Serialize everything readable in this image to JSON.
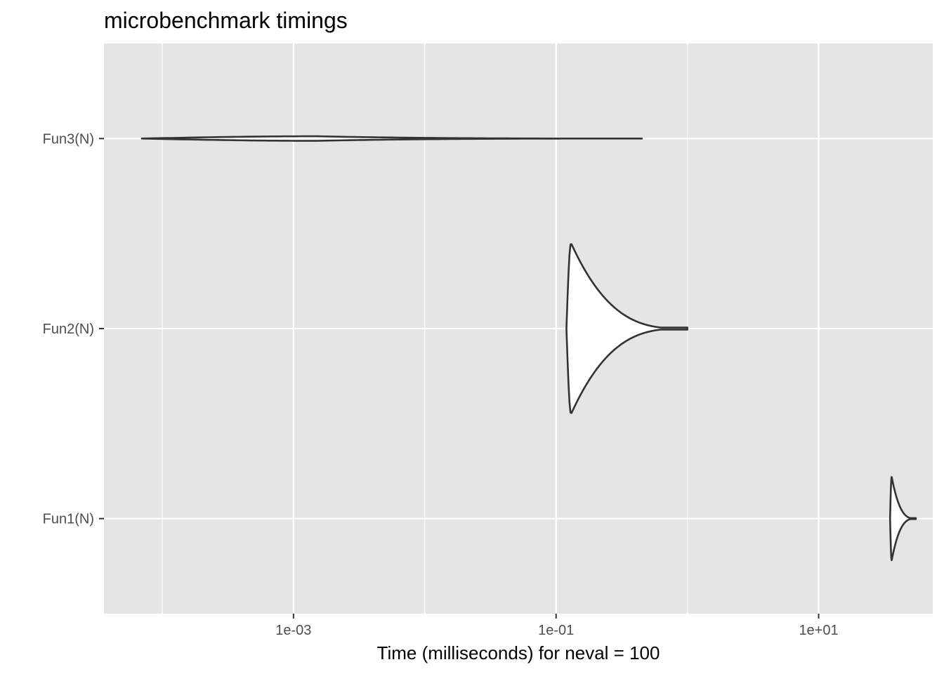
{
  "chart_data": {
    "type": "violin",
    "title": "microbenchmark timings",
    "xlabel": "Time (milliseconds) for neval = 100",
    "ylabel": "",
    "x_scale": "log10",
    "x_ticks": [
      {
        "value": 0.001,
        "label": "1e-03"
      },
      {
        "value": 0.1,
        "label": "1e-01"
      },
      {
        "value": 10,
        "label": "1e+01"
      }
    ],
    "xlim": [
      3.6e-05,
      74
    ],
    "categories": [
      "Fun3(N)",
      "Fun2(N)",
      "Fun1(N)"
    ],
    "grid": true,
    "legend": "none",
    "panel_color": "#e5e5e5",
    "grid_color": "#ffffff",
    "line_color": "#333333",
    "violins": [
      {
        "category": "Fun3(N)",
        "min": 7e-05,
        "max": 0.45,
        "mode": 0.0015,
        "max_half_width": 0.012
      },
      {
        "category": "Fun2(N)",
        "min": 0.12,
        "max": 1.0,
        "mode": 0.13,
        "max_half_width": 0.45
      },
      {
        "category": "Fun1(N)",
        "min": 35,
        "max": 55,
        "mode": 36,
        "max_half_width": 0.22
      }
    ]
  }
}
